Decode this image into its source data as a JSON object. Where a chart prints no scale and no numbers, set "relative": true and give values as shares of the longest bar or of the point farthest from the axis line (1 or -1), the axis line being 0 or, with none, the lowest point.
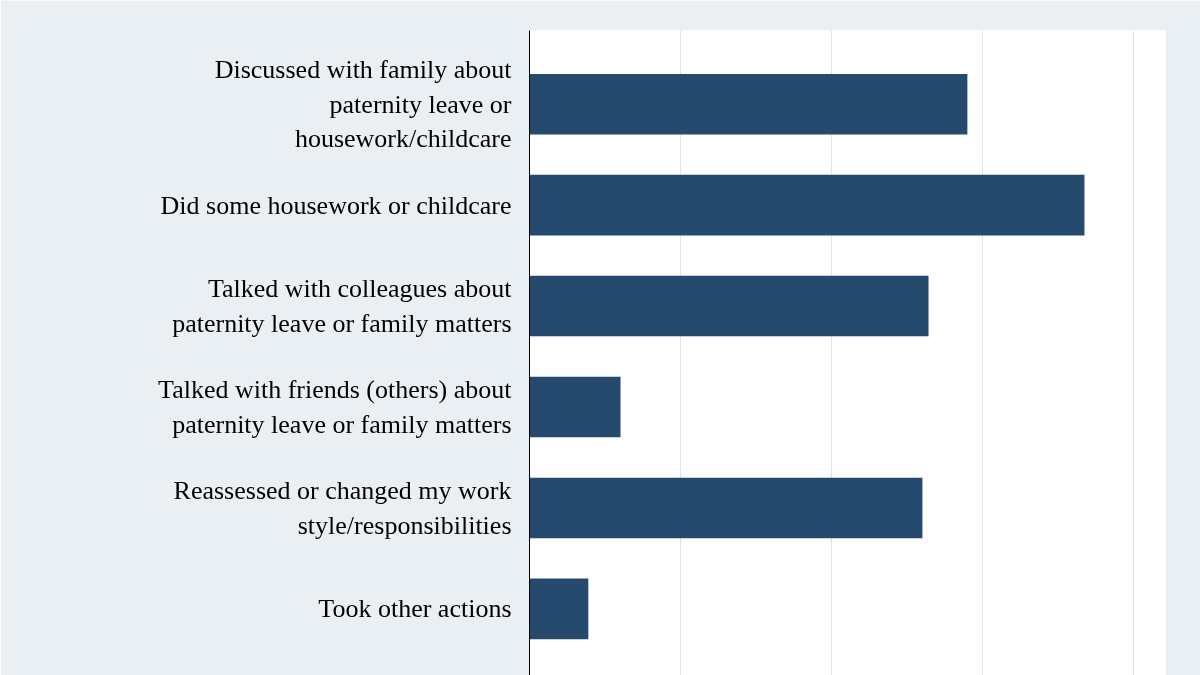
{
  "chart_data": {
    "type": "bar",
    "orientation": "horizontal",
    "relative": true,
    "grid": "x",
    "categories": [
      "Discussed with family about\npaternity leave or\nhousework/childcare",
      "Did some housework or childcare",
      "Talked with colleagues about\npaternity leave or family matters",
      "Talked with friends (others) about\npaternity leave or family matters",
      "Reassessed or changed my work\nstyle/responsibilities",
      "Took other actions"
    ],
    "values": [
      0.789,
      1,
      0.719,
      0.164,
      0.708,
      0.106
    ],
    "color": "#264a6e"
  }
}
